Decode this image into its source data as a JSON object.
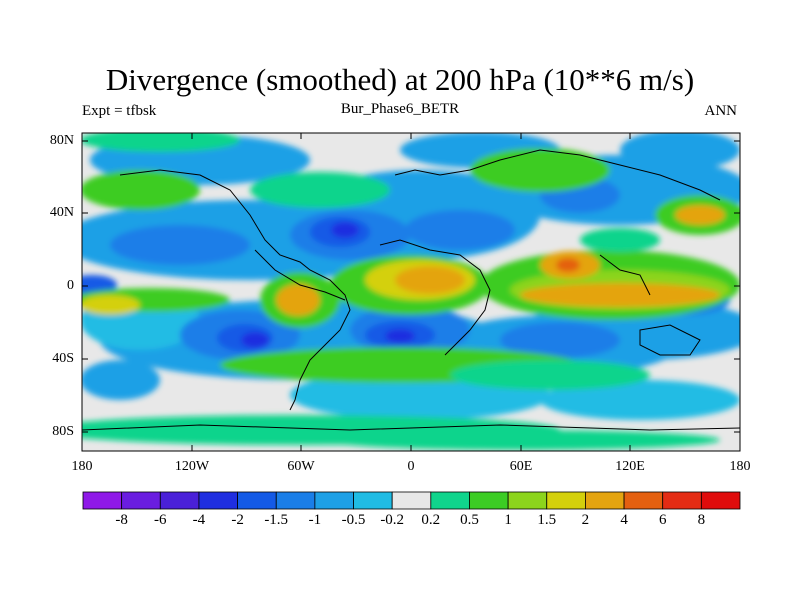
{
  "title": "Divergence (smoothed) at 200 hPa (10**6 m/s)",
  "experiment": "Expt = tfbsk",
  "case_name": "Bur_Phase6_BETR",
  "season": "ANN",
  "lat_ticks": [
    "80N",
    "40N",
    "0",
    "40S",
    "80S"
  ],
  "lon_ticks": [
    "180",
    "120W",
    "60W",
    "0",
    "60E",
    "120E",
    "180"
  ],
  "colorbar": {
    "labels": [
      "-8",
      "-6",
      "-4",
      "-2",
      "-1.5",
      "-1",
      "-0.5",
      "-0.2",
      "0.2",
      "0.5",
      "1",
      "1.5",
      "2",
      "4",
      "6",
      "8"
    ],
    "colors": [
      "#8f19e8",
      "#6a1de0",
      "#4a20d8",
      "#1f2ee0",
      "#145ae6",
      "#1a7ee8",
      "#1ea0e6",
      "#20bce4",
      "#e8e8e8",
      "#10d48c",
      "#3ccc24",
      "#8cd41c",
      "#d4d00c",
      "#e4a410",
      "#e46010",
      "#e42c14",
      "#e00c0c"
    ]
  }
}
